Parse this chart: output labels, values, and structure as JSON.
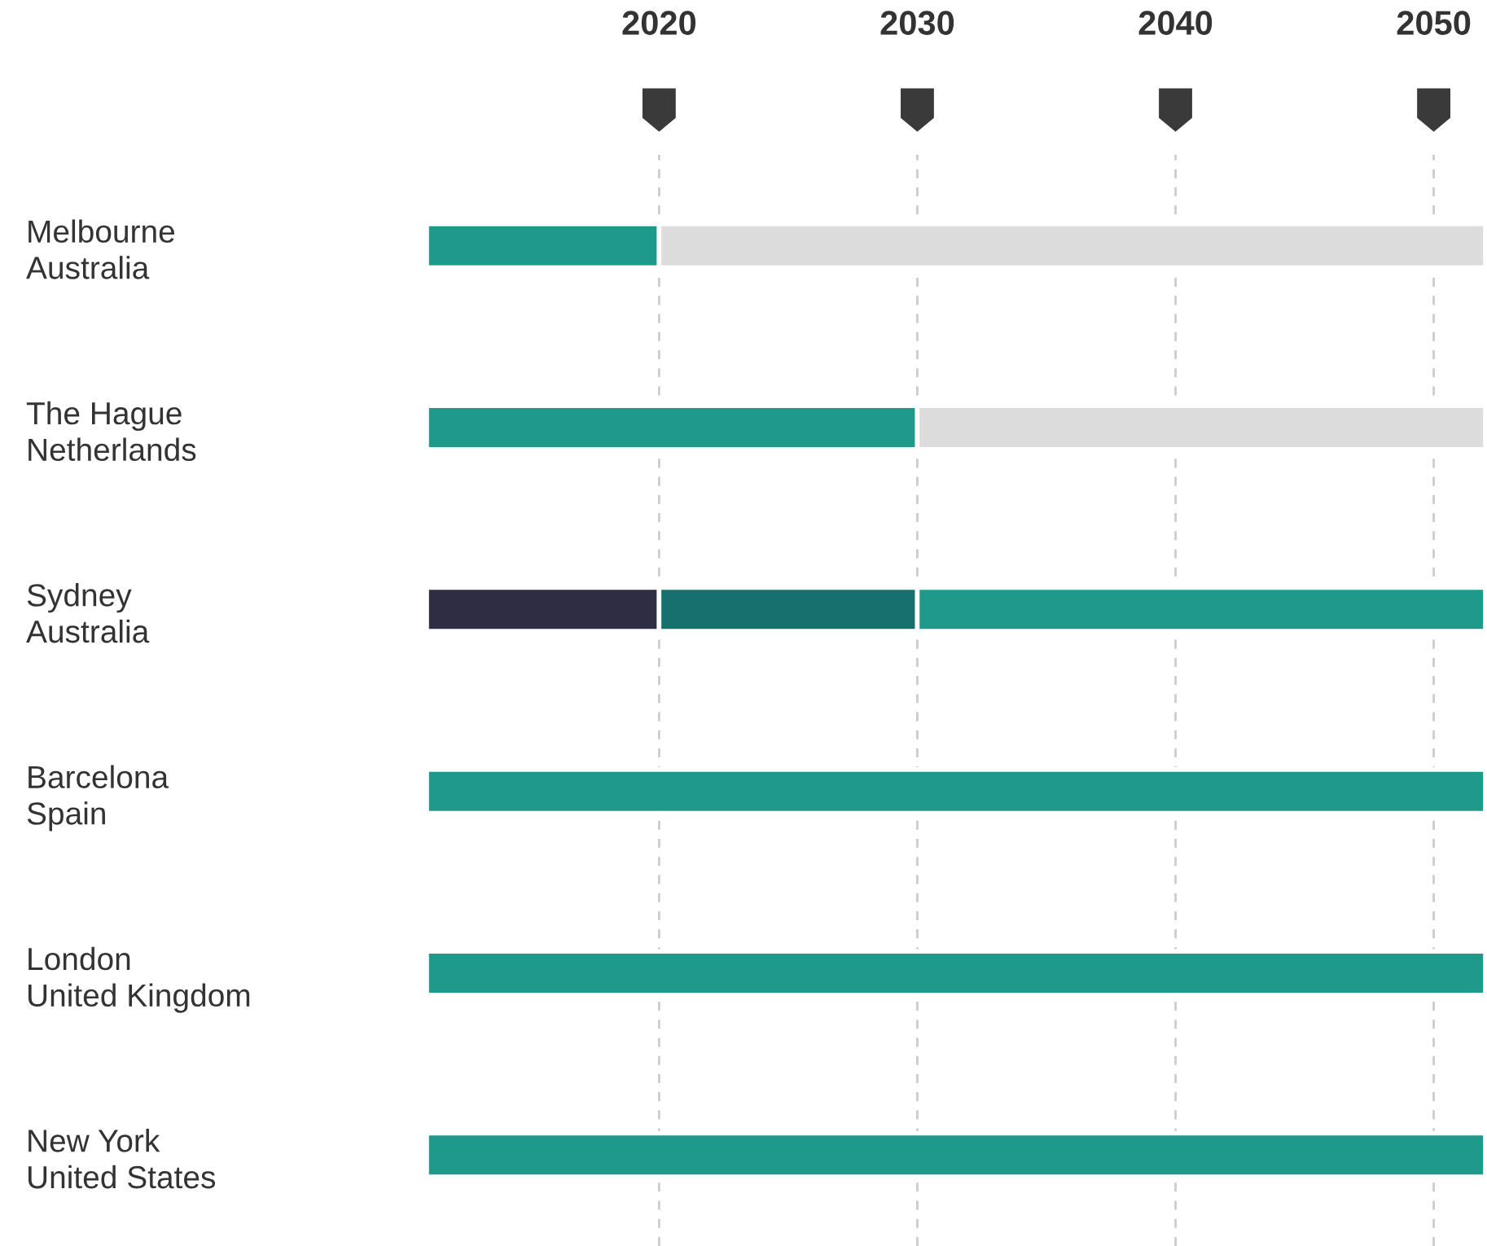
{
  "chart_data": {
    "type": "bar",
    "orientation": "horizontal",
    "categories": [
      "Melbourne\nAustralia",
      "The Hague\nNetherlands",
      "Sydney\nAustralia",
      "Barcelona\nSpain",
      "London\nUnited Kingdom",
      "New York\nUnited States"
    ],
    "series": [
      {
        "color": "#2e2d44",
        "base": [
          null,
          null,
          2011,
          null,
          null,
          null
        ],
        "values": [
          null,
          null,
          9,
          null,
          null,
          null
        ]
      },
      {
        "color": "#17706e",
        "base": [
          null,
          null,
          2020,
          null,
          null,
          null
        ],
        "values": [
          null,
          null,
          10,
          null,
          null,
          null
        ]
      },
      {
        "color": "#1f9a8a",
        "base": [
          2011,
          2011,
          2030,
          2011,
          2011,
          2011
        ],
        "values": [
          9,
          19,
          22,
          41,
          41,
          41
        ]
      },
      {
        "color": "#dcdcdc",
        "base": [
          2020,
          2030,
          null,
          null,
          null,
          null
        ],
        "values": [
          32,
          22,
          null,
          null,
          null,
          null
        ]
      }
    ],
    "xlim": [
      2011,
      2052
    ],
    "xticks": [
      2020,
      2030,
      2040,
      2050
    ],
    "grid": "x"
  }
}
